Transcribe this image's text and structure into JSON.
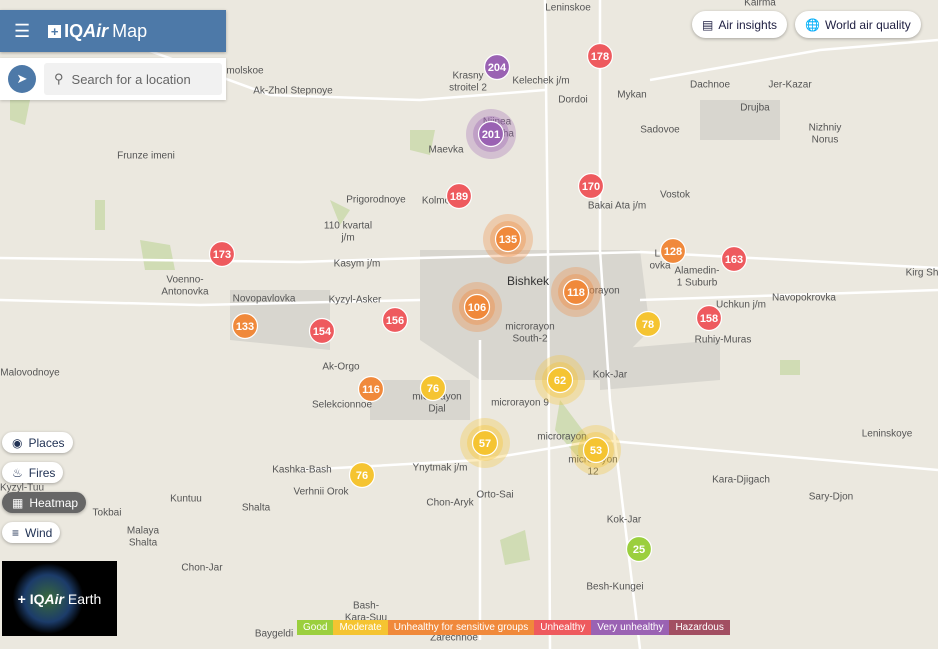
{
  "header": {
    "logo_prefix": "IQ",
    "logo_italic": "Air",
    "title": "Map"
  },
  "search": {
    "placeholder": "Search for a location"
  },
  "top_buttons": [
    "Air insights",
    "World air quality"
  ],
  "layers": [
    "Places",
    "Fires",
    "Heatmap",
    "Wind"
  ],
  "earth": {
    "logo_prefix": "IQ",
    "logo_italic": "Air",
    "title": "Earth"
  },
  "places": [
    [
      "Leninskoe"
    ],
    [
      "Kairma"
    ],
    [
      "molskoe"
    ],
    [
      "Ak-Zhol Stepnoye"
    ],
    [
      "Krasny",
      "stroitel 2"
    ],
    [
      "Kelechek j/m"
    ],
    [
      "Dordoi"
    ],
    [
      "Mykan"
    ],
    [
      "Dachnoe"
    ],
    [
      "Jer-Kazar"
    ],
    [
      "Drujba"
    ],
    [
      "Sadovoe"
    ],
    [
      "Nizhniy",
      "Norus"
    ],
    [
      "Frunze imeni"
    ],
    [
      "Nijnea",
      "a-archa"
    ],
    [
      "Maevka"
    ],
    [
      "Vostok"
    ],
    [
      "Bakai Ata j/m"
    ],
    [
      "Prigorodnoye"
    ],
    [
      "Kolmo"
    ],
    [
      "110 kvartal",
      "j/m"
    ],
    [
      "Kasym j/m"
    ],
    [
      "Voenno-",
      "Antonovka"
    ],
    [
      "Novopavlovka"
    ],
    [
      "Kyzyl-Asker"
    ],
    [
      "Bishkek"
    ],
    [
      "Le",
      "ovka"
    ],
    [
      "Alamedin-",
      "1 Suburb"
    ],
    [
      "Kirg Sh"
    ],
    [
      "Uchkun j/m"
    ],
    [
      "Navopokrovka"
    ],
    [
      "Ruhiy-Muras"
    ],
    [
      "microrayon",
      "South-2"
    ],
    [
      "microrayon"
    ],
    [
      "Malovodnoye"
    ],
    [
      "Ak-Orgo"
    ],
    [
      "Selekcionnoe"
    ],
    [
      "microrayon",
      "Djal"
    ],
    [
      "microrayon 9"
    ],
    [
      "Kok-Jar"
    ],
    [
      "microrayon"
    ],
    [
      "microrayon",
      "12"
    ],
    [
      "Leninskoye"
    ],
    [
      "Kashka-Bash"
    ],
    [
      "Ynytmak j/m"
    ],
    [
      "Kyzyl-Tuu"
    ],
    [
      "Verhnii Orok"
    ],
    [
      "Orto-Sai"
    ],
    [
      "Kara-Djigach"
    ],
    [
      "Sary-Djon"
    ],
    [
      "Kuntuu"
    ],
    [
      "Shalta"
    ],
    [
      "Chon-Aryk"
    ],
    [
      "Tokbai"
    ],
    [
      "Malaya",
      "Shalta"
    ],
    [
      "Kok-Jar"
    ],
    [
      "Chon-Jar"
    ],
    [
      "Besh-Kungei"
    ],
    [
      "Bash-",
      "Kara-Suu"
    ],
    [
      "Baygeldi"
    ],
    [
      "Zarechnoe"
    ]
  ],
  "stations": [
    {
      "aqi": 204,
      "level": 4
    },
    {
      "aqi": 178,
      "level": 3
    },
    {
      "aqi": 201,
      "level": 4,
      "cluster": true
    },
    {
      "aqi": 170,
      "level": 3
    },
    {
      "aqi": 189,
      "level": 3
    },
    {
      "aqi": 135,
      "level": 2,
      "cluster": true
    },
    {
      "aqi": 173,
      "level": 3
    },
    {
      "aqi": 128,
      "level": 2
    },
    {
      "aqi": 163,
      "level": 3
    },
    {
      "aqi": 118,
      "level": 2,
      "cluster": true
    },
    {
      "aqi": 106,
      "level": 2,
      "cluster": true
    },
    {
      "aqi": 133,
      "level": 2
    },
    {
      "aqi": 154,
      "level": 3
    },
    {
      "aqi": 156,
      "level": 3
    },
    {
      "aqi": 158,
      "level": 3
    },
    {
      "aqi": 78,
      "level": 1
    },
    {
      "aqi": 62,
      "level": 1,
      "cluster": true
    },
    {
      "aqi": 116,
      "level": 2
    },
    {
      "aqi": 76,
      "level": 1
    },
    {
      "aqi": 57,
      "level": 1,
      "cluster": true
    },
    {
      "aqi": 53,
      "level": 1,
      "cluster": true
    },
    {
      "aqi": 76,
      "level": 1
    },
    {
      "aqi": 25,
      "level": 0
    }
  ],
  "legend": [
    {
      "label": "Good",
      "color": "#9bcf3e"
    },
    {
      "label": "Moderate",
      "color": "#f5c431"
    },
    {
      "label": "Unhealthy for sensitive groups",
      "color": "#f0893b"
    },
    {
      "label": "Unhealthy",
      "color": "#ee5a5e"
    },
    {
      "label": "Very unhealthy",
      "color": "#9a62b3"
    },
    {
      "label": "Hazardous",
      "color": "#a24f62"
    }
  ]
}
